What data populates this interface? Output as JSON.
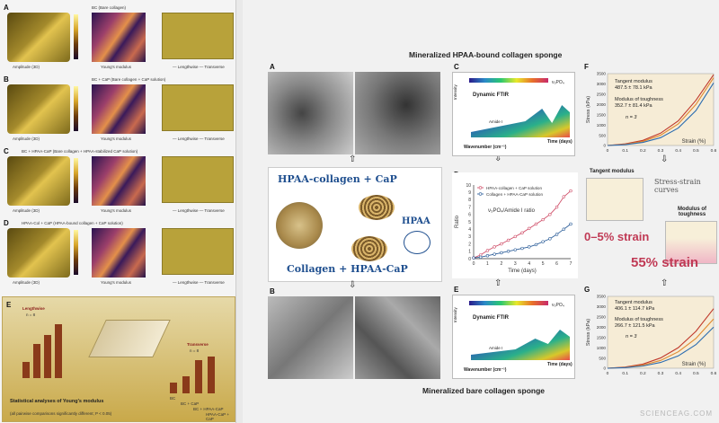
{
  "left": {
    "rows": [
      {
        "letter": "A",
        "title": "BC (Bare collagen)",
        "amp": "Amplitude (3D)",
        "ym": "Young's modulus",
        "leg": "— Lengthwise  — Transverse"
      },
      {
        "letter": "B",
        "title": "BC + CaP (Bare collagen + CaP solution)",
        "amp": "Amplitude (3D)",
        "ym": "Young's modulus",
        "leg": "— Lengthwise  — Transverse"
      },
      {
        "letter": "C",
        "title": "BC + HPAA-CaP (Bare collagen + HPAA-stabilized CaP solution)",
        "amp": "Amplitude (3D)",
        "ym": "Young's modulus",
        "leg": "— Lengthwise  — Transverse"
      },
      {
        "letter": "D",
        "title": "HPAA-Col + CaP (HPAA-bound collagen + CaP solution)",
        "amp": "Amplitude (3D)",
        "ym": "Young's modulus",
        "leg": "— Lengthwise  — Transverse"
      }
    ],
    "e_letter": "E",
    "lengthwise": "Lengthwise",
    "transverse": "Transverse",
    "n_left": "n = 8",
    "n_right": "n = 8",
    "stat_title": "Statistical analyses of Young's modulus",
    "stat_note": "(all pairwise comparisons significantly different; P < 0.05)",
    "bar_cats": [
      "BC",
      "BC + CaP",
      "BC + HPAA-CaP",
      "HPAA-CaP + CaP"
    ]
  },
  "right": {
    "title_top": "Mineralized HPAA-bound collagen sponge",
    "title_bottom": "Mineralized bare collagen sponge",
    "A": "A",
    "B": "B",
    "C": "C",
    "D": "D",
    "E": "E",
    "F": "F",
    "G": "G",
    "ftir_label": "Dynamic FTIR",
    "intensity": "Intensity",
    "wavenumber": "Wavenumber (cm⁻¹)",
    "time_days": "Time (days)",
    "amide": "Amide I",
    "po4": "ν₃PO₄",
    "diagram_top": "HPAA-collagen + CaP",
    "diagram_hpaa": "HPAA",
    "diagram_bottom": "Collagen + HPAA-CaP",
    "legend_1": "HPAA-collagen + CaP solution",
    "legend_2": "Collagen + HPAA-CaP solution",
    "ratio_label": "Ratio",
    "ratio_text": "ν₃PO₄/Amide I ratio",
    "time_label": "Time (days)",
    "tangent_title": "Tangent modulus",
    "toughness_title": "Modulus of toughness",
    "stress_strain": "Stress-strain curves",
    "strain_05": "0–5% strain",
    "strain_55": "55% strain",
    "F_tangent": "Tangent modulus",
    "F_tangent_val": "487.5 ± 78.1 kPa",
    "F_tough": "Modulus of toughness",
    "F_tough_val": "352.7 ± 81.4 kPa",
    "F_n": "n = 3",
    "G_tangent": "Tangent modulus",
    "G_tangent_val": "406.1 ± 114.7 kPa",
    "G_tough": "Modulus of toughness",
    "G_tough_val": "266.7 ± 121.5 kPa",
    "G_n": "n = 3",
    "stress_label": "Stress (kPa)",
    "strain_label": "Strain (%)",
    "arrow_up": "⇧",
    "arrow_down": "⇩"
  },
  "watermark": "SCIENCEAG.COM",
  "chart_data": [
    {
      "type": "line",
      "title": "ν₃PO₄/Amide I ratio",
      "xlabel": "Time (days)",
      "ylabel": "Ratio",
      "x": [
        0,
        0.5,
        1,
        1.5,
        2,
        2.5,
        3,
        3.5,
        4,
        4.5,
        5,
        5.5,
        6,
        6.5,
        7
      ],
      "xlim": [
        0,
        7
      ],
      "ylim": [
        0,
        10
      ],
      "xticks": [
        0,
        1,
        2,
        3,
        4,
        5,
        6,
        7
      ],
      "yticks": [
        0,
        1,
        2,
        3,
        4,
        5,
        6,
        7,
        8,
        9,
        10
      ],
      "legend": "top-left",
      "series": [
        {
          "name": "HPAA-collagen + CaP solution",
          "color": "#d0506a",
          "values": [
            0.1,
            0.5,
            1.1,
            1.6,
            2.0,
            2.5,
            3.0,
            3.5,
            4.1,
            4.7,
            5.3,
            6.0,
            7.0,
            8.4,
            9.2
          ]
        },
        {
          "name": "Collagen + HPAA-CaP solution",
          "color": "#2e5f9a",
          "values": [
            0.1,
            0.2,
            0.4,
            0.6,
            0.8,
            1.0,
            1.2,
            1.4,
            1.6,
            1.9,
            2.3,
            2.7,
            3.3,
            4.0,
            4.7
          ]
        }
      ]
    },
    {
      "type": "line",
      "xlabel": "Strain (%)",
      "ylabel": "Stress (kPa)",
      "xlim": [
        0,
        0.6
      ],
      "ylim": [
        0,
        3500
      ],
      "xticks": [
        0,
        0.1,
        0.2,
        0.3,
        0.4,
        0.5,
        0.6
      ],
      "yticks": [
        0,
        500,
        1000,
        1500,
        2000,
        2500,
        3000,
        3500
      ],
      "series": [
        {
          "color": "#c0392b",
          "x": [
            0,
            0.1,
            0.2,
            0.3,
            0.4,
            0.5,
            0.6
          ],
          "values": [
            0,
            80,
            250,
            600,
            1200,
            2200,
            3450
          ]
        },
        {
          "color": "#e08a30",
          "x": [
            0,
            0.1,
            0.2,
            0.3,
            0.4,
            0.5,
            0.6
          ],
          "values": [
            0,
            60,
            200,
            500,
            1050,
            2000,
            3300
          ]
        },
        {
          "color": "#2b6cb0",
          "x": [
            0,
            0.1,
            0.2,
            0.3,
            0.4,
            0.5,
            0.6
          ],
          "values": [
            0,
            40,
            150,
            380,
            850,
            1700,
            3050
          ]
        }
      ]
    },
    {
      "type": "line",
      "xlabel": "Strain (%)",
      "ylabel": "Stress (kPa)",
      "xlim": [
        0,
        0.6
      ],
      "ylim": [
        0,
        3500
      ],
      "xticks": [
        0,
        0.1,
        0.2,
        0.3,
        0.4,
        0.5,
        0.6
      ],
      "yticks": [
        0,
        500,
        1000,
        1500,
        2000,
        2500,
        3000,
        3500
      ],
      "series": [
        {
          "color": "#c0392b",
          "x": [
            0,
            0.1,
            0.2,
            0.3,
            0.4,
            0.5,
            0.6
          ],
          "values": [
            0,
            60,
            200,
            500,
            1000,
            1800,
            2900
          ]
        },
        {
          "color": "#e08a30",
          "x": [
            0,
            0.1,
            0.2,
            0.3,
            0.4,
            0.5,
            0.6
          ],
          "values": [
            0,
            40,
            150,
            380,
            800,
            1450,
            2400
          ]
        },
        {
          "color": "#2b6cb0",
          "x": [
            0,
            0.1,
            0.2,
            0.3,
            0.4,
            0.5,
            0.6
          ],
          "values": [
            0,
            30,
            110,
            280,
            600,
            1150,
            2000
          ]
        }
      ]
    }
  ]
}
